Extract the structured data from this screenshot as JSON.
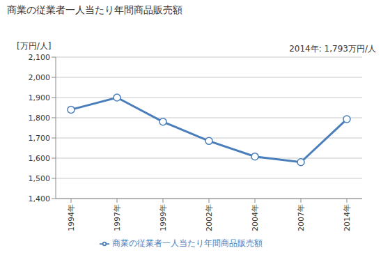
{
  "chart_data": {
    "type": "line",
    "title": "商業の従業者一人当たり年間商品販売額",
    "y_label": "[万円/人]",
    "annotation": "2014年: 1,793万円/人",
    "categories": [
      "1994年",
      "1997年",
      "1999年",
      "2002年",
      "2004年",
      "2007年",
      "2014年"
    ],
    "series": [
      {
        "name": "商業の従業者一人当たり年間商品販売額",
        "color": "#4a7ebb",
        "marker": "circle",
        "values": [
          1840,
          1900,
          1780,
          1685,
          1608,
          1580,
          1793
        ]
      }
    ],
    "ylim": [
      1400,
      2100
    ],
    "yticks": [
      {
        "value": 1400,
        "label": "1,400"
      },
      {
        "value": 1500,
        "label": "1,500"
      },
      {
        "value": 1600,
        "label": "1,600"
      },
      {
        "value": 1700,
        "label": "1,700"
      },
      {
        "value": 1800,
        "label": "1,800"
      },
      {
        "value": 1900,
        "label": "1,900"
      },
      {
        "value": 2000,
        "label": "2,000"
      },
      {
        "value": 2100,
        "label": "2,100"
      }
    ],
    "grid": true,
    "legend": "bottom"
  }
}
